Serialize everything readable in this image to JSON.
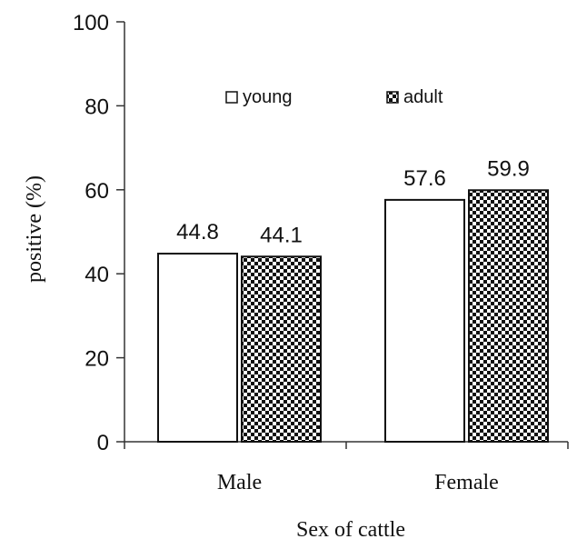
{
  "chart_data": {
    "type": "bar",
    "title": "",
    "xlabel": "Sex of cattle",
    "ylabel": "positive (%)",
    "categories": [
      "Male",
      "Female"
    ],
    "series": [
      {
        "name": "young",
        "values": [
          44.8,
          57.6
        ],
        "pattern": "solid-white"
      },
      {
        "name": "adult",
        "values": [
          44.1,
          59.9
        ],
        "pattern": "checkerboard"
      }
    ],
    "data_labels": [
      [
        "44.8",
        "57.6"
      ],
      [
        "44.1",
        "59.9"
      ]
    ],
    "ylim": [
      0,
      100
    ],
    "yticks": [
      0,
      20,
      40,
      60,
      80,
      100
    ],
    "ytick_labels": [
      "0",
      "20",
      "40",
      "60",
      "80",
      "100"
    ],
    "grid": false,
    "legend_position": "top-inside",
    "colors": {
      "bar_edge": "#111111",
      "young_fill": "#ffffff",
      "adult_fill": "#111111",
      "axis": "#333333"
    }
  }
}
